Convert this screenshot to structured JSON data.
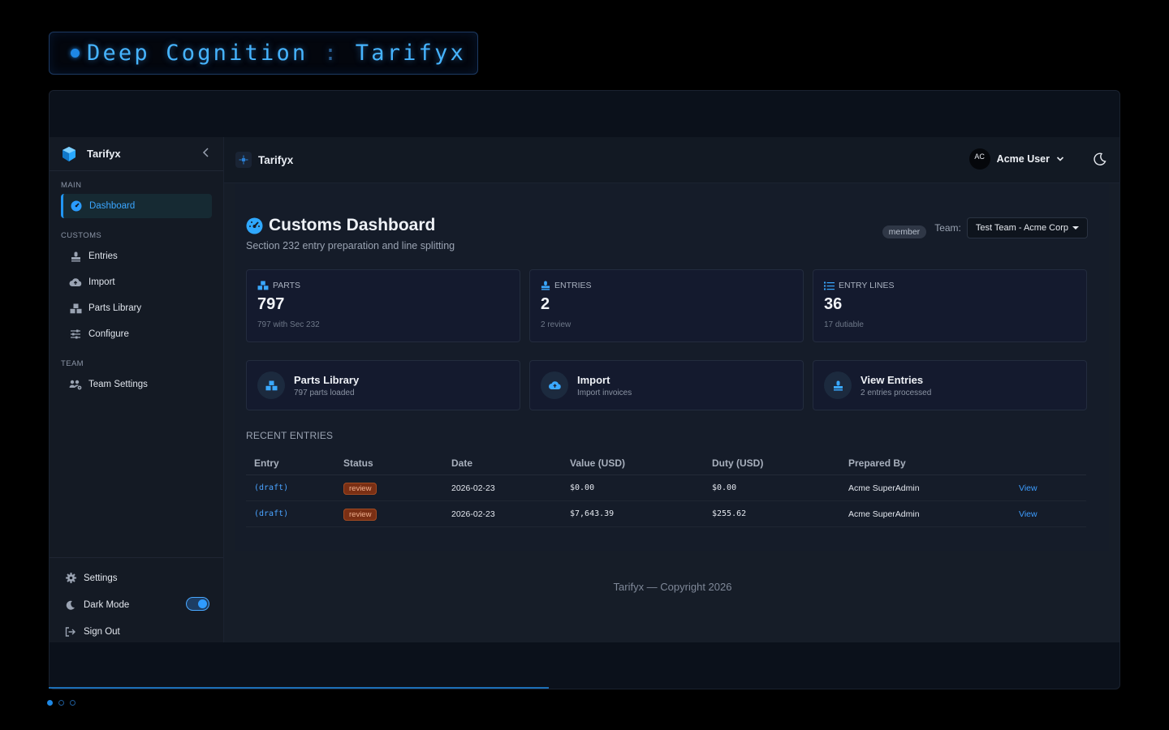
{
  "banner": {
    "title": "Deep Cognition",
    "separator": ":",
    "product": "Tarifyx"
  },
  "sidebar": {
    "brand": "Tarifyx",
    "sections": {
      "main": "MAIN",
      "customs": "CUSTOMS",
      "team": "TEAM"
    },
    "items": {
      "dashboard": "Dashboard",
      "entries": "Entries",
      "import": "Import",
      "parts_library": "Parts Library",
      "configure": "Configure",
      "team_settings": "Team Settings"
    },
    "bottom": {
      "settings": "Settings",
      "dark_mode": "Dark Mode",
      "sign_out": "Sign Out",
      "dark_mode_on": true
    }
  },
  "topbar": {
    "title": "Tarifyx",
    "avatar_initials": "AC",
    "user_name": "Acme User"
  },
  "page": {
    "title": "Customs Dashboard",
    "subtitle": "Section 232 entry preparation and line splitting",
    "role_badge": "member",
    "team_label": "Team:",
    "team_value": "Test Team - Acme Corp"
  },
  "stats": [
    {
      "label": "PARTS",
      "value": "797",
      "sub": "797 with Sec 232",
      "icon": "cubes-icon"
    },
    {
      "label": "ENTRIES",
      "value": "2",
      "sub": "2 review",
      "icon": "stamp-icon"
    },
    {
      "label": "ENTRY LINES",
      "value": "36",
      "sub": "17 dutiable",
      "icon": "list-icon"
    }
  ],
  "quick": [
    {
      "title": "Parts Library",
      "sub": "797 parts loaded",
      "icon": "cubes-icon"
    },
    {
      "title": "Import",
      "sub": "Import invoices",
      "icon": "cloud-upload-icon"
    },
    {
      "title": "View Entries",
      "sub": "2 entries processed",
      "icon": "stamp-icon"
    }
  ],
  "recent": {
    "label": "RECENT ENTRIES",
    "headers": [
      "Entry",
      "Status",
      "Date",
      "Value (USD)",
      "Duty (USD)",
      "Prepared By"
    ],
    "rows": [
      {
        "entry": "(draft)",
        "status": "review",
        "date": "2026-02-23",
        "value": "$0.00",
        "duty": "$0.00",
        "prepared_by": "Acme SuperAdmin",
        "action": "View"
      },
      {
        "entry": "(draft)",
        "status": "review",
        "date": "2026-02-23",
        "value": "$7,643.39",
        "duty": "$255.62",
        "prepared_by": "Acme SuperAdmin",
        "action": "View"
      }
    ]
  },
  "footer": "Tarifyx — Copyright 2026",
  "colors": {
    "accent": "#2196f3",
    "review_badge": "#7a2f14",
    "background": "#000000"
  }
}
